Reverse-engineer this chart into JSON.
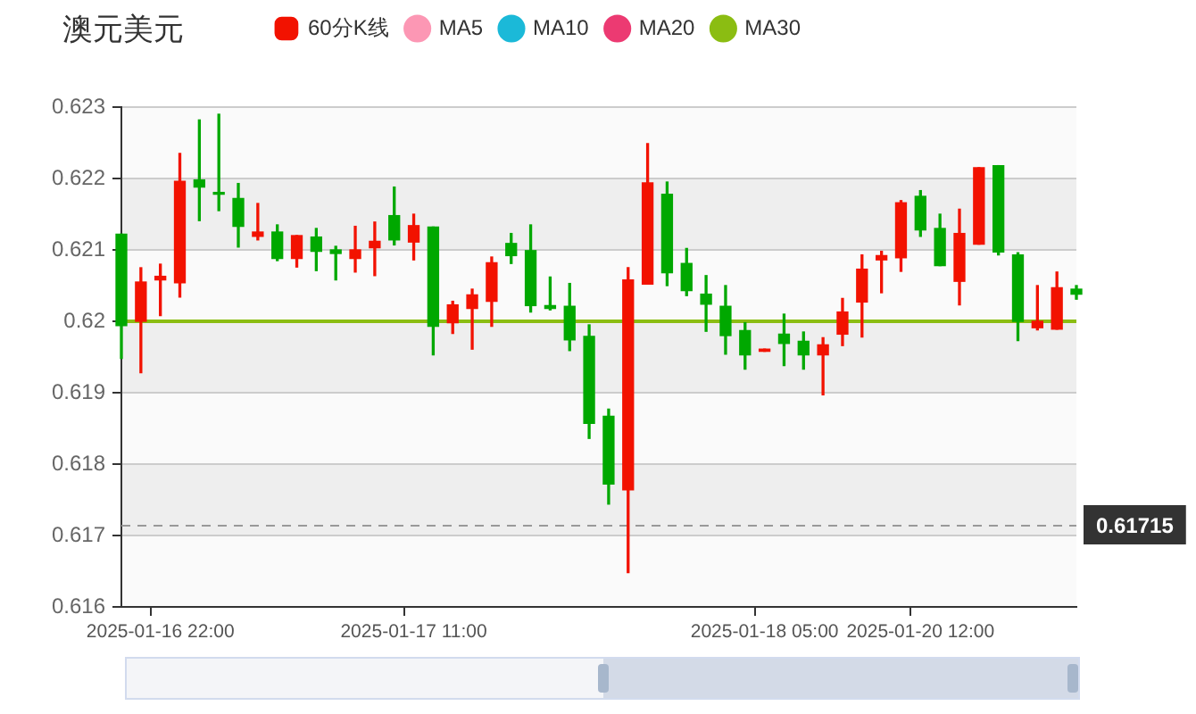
{
  "chart_data": {
    "type": "candlestick",
    "title": "澳元美元",
    "categories": [
      null,
      null,
      "2025-01-16 22:00",
      null,
      null,
      null,
      null,
      null,
      null,
      null,
      null,
      null,
      null,
      null,
      null,
      "2025-01-17 11:00",
      null,
      null,
      null,
      null,
      null,
      null,
      null,
      null,
      null,
      null,
      null,
      null,
      null,
      null,
      null,
      null,
      null,
      "2025-01-18 05:00",
      null,
      null,
      null,
      null,
      null,
      null,
      null,
      "2025-01-20 12:00",
      null,
      null,
      null,
      null,
      null,
      null,
      null,
      null
    ],
    "series": [
      {
        "name": "60分K线",
        "color": "#f21200",
        "ohlc": [
          [
            0.62122,
            0.62122,
            0.61948,
            0.61994
          ],
          [
            0.62,
            0.62075,
            0.61928,
            0.62055
          ],
          [
            0.62058,
            0.6208,
            0.62008,
            0.62063
          ],
          [
            0.62054,
            0.62235,
            0.62034,
            0.62196
          ],
          [
            0.62198,
            0.62282,
            0.62141,
            0.62188
          ],
          [
            0.6218,
            0.6229,
            0.62155,
            0.62178
          ],
          [
            0.62172,
            0.62193,
            0.62104,
            0.62133
          ],
          [
            0.62119,
            0.62165,
            0.62114,
            0.62125
          ],
          [
            0.62125,
            0.62135,
            0.62085,
            0.62088
          ],
          [
            0.62088,
            0.6212,
            0.62076,
            0.6212
          ],
          [
            0.62118,
            0.6213,
            0.62071,
            0.62098
          ],
          [
            0.621,
            0.62105,
            0.62058,
            0.62095
          ],
          [
            0.62088,
            0.62133,
            0.62069,
            0.621
          ],
          [
            0.62103,
            0.62139,
            0.62064,
            0.62112
          ],
          [
            0.62148,
            0.62188,
            0.62107,
            0.62114
          ],
          [
            0.62111,
            0.6215,
            0.62086,
            0.62134
          ],
          [
            0.62132,
            0.62132,
            0.61953,
            0.61993
          ],
          [
            0.61998,
            0.62028,
            0.61983,
            0.62023
          ],
          [
            0.62018,
            0.62045,
            0.61961,
            0.62037
          ],
          [
            0.62028,
            0.6209,
            0.61993,
            0.62082
          ],
          [
            0.62109,
            0.62123,
            0.62081,
            0.62092
          ],
          [
            0.62099,
            0.62135,
            0.62013,
            0.62022
          ],
          [
            0.62022,
            0.62062,
            0.62016,
            0.62018
          ],
          [
            0.62021,
            0.62053,
            0.61959,
            0.61974
          ],
          [
            0.61979,
            0.61995,
            0.61836,
            0.61857
          ],
          [
            0.61867,
            0.61877,
            0.61744,
            0.61772
          ],
          [
            0.61764,
            0.62075,
            0.61648,
            0.62058
          ],
          [
            0.62052,
            0.62249,
            0.62052,
            0.62194
          ],
          [
            0.62178,
            0.62195,
            0.6205,
            0.62068
          ],
          [
            0.62081,
            0.62102,
            0.62036,
            0.62043
          ],
          [
            0.62038,
            0.62064,
            0.61986,
            0.62024
          ],
          [
            0.62021,
            0.6205,
            0.61954,
            0.6198
          ],
          [
            0.61987,
            0.61998,
            0.61933,
            0.61953
          ],
          [
            0.61958,
            0.61961,
            0.61958,
            0.61961
          ],
          [
            0.61982,
            0.6201,
            0.61938,
            0.61969
          ],
          [
            0.61972,
            0.61985,
            0.61933,
            0.61953
          ],
          [
            0.61953,
            0.61977,
            0.61897,
            0.61967
          ],
          [
            0.61982,
            0.62032,
            0.61966,
            0.62013
          ],
          [
            0.62027,
            0.62093,
            0.61978,
            0.62073
          ],
          [
            0.62086,
            0.62098,
            0.6204,
            0.62092
          ],
          [
            0.62089,
            0.62169,
            0.6207,
            0.62166
          ],
          [
            0.62175,
            0.62183,
            0.62119,
            0.62128
          ],
          [
            0.6213,
            0.6215,
            0.62078,
            0.62078
          ],
          [
            0.62056,
            0.62157,
            0.62023,
            0.62123
          ],
          [
            0.62108,
            0.62215,
            0.62108,
            0.62215
          ],
          [
            0.62218,
            0.62218,
            0.62093,
            0.62097
          ],
          [
            0.62093,
            0.62096,
            0.61973,
            0.62
          ],
          [
            0.61991,
            0.6205,
            0.61988,
            0.62
          ],
          [
            0.61989,
            0.62069,
            0.61989,
            0.62047
          ],
          [
            0.62045,
            0.6205,
            0.62031,
            0.62038
          ]
        ],
        "colors": [
          "#00a800",
          "#f21200",
          "#f21200",
          "#f21200",
          "#00a800",
          "#00a800",
          "#00a800",
          "#f21200",
          "#00a800",
          "#f21200",
          "#00a800",
          "#00a800",
          "#f21200",
          "#f21200",
          "#00a800",
          "#f21200",
          "#00a800",
          "#f21200",
          "#f21200",
          "#f21200",
          "#00a800",
          "#00a800",
          "#00a800",
          "#00a800",
          "#00a800",
          "#00a800",
          "#f21200",
          "#f21200",
          "#00a800",
          "#00a800",
          "#00a800",
          "#00a800",
          "#00a800",
          "#f21200",
          "#00a800",
          "#00a800",
          "#f21200",
          "#f21200",
          "#f21200",
          "#f21200",
          "#f21200",
          "#00a800",
          "#00a800",
          "#f21200",
          "#f21200",
          "#00a800",
          "#00a800",
          "#f21200",
          "#f21200",
          "#00a800"
        ]
      },
      {
        "name": "MA5",
        "type": "line",
        "color": "#fc97b4",
        "values": [
          null,
          null,
          null,
          null,
          null,
          null,
          null,
          null,
          null,
          null,
          null,
          null,
          null,
          null,
          null,
          null,
          null,
          null,
          null,
          null,
          null,
          null,
          null,
          null,
          null,
          null,
          null,
          null,
          null,
          null,
          null,
          null,
          null,
          null,
          null,
          null,
          null,
          null,
          null,
          null,
          null,
          null,
          null,
          null,
          null,
          null,
          null,
          null,
          null,
          null
        ]
      },
      {
        "name": "MA10",
        "type": "line",
        "color": "#1bb9d8",
        "values": [
          null,
          null,
          null,
          null,
          null,
          null,
          null,
          null,
          null,
          null,
          null,
          null,
          null,
          null,
          null,
          null,
          null,
          null,
          null,
          null,
          null,
          null,
          null,
          null,
          null,
          null,
          null,
          null,
          null,
          null,
          null,
          null,
          null,
          null,
          null,
          null,
          null,
          null,
          null,
          null,
          null,
          null,
          null,
          null,
          null,
          null,
          null,
          null,
          null,
          null
        ]
      },
      {
        "name": "MA20",
        "type": "line",
        "color": "#ec3a72",
        "values": [
          null,
          null,
          null,
          null,
          null,
          null,
          null,
          null,
          null,
          null,
          null,
          null,
          null,
          null,
          null,
          null,
          null,
          null,
          null,
          null,
          null,
          null,
          null,
          null,
          null,
          null,
          null,
          null,
          null,
          null,
          null,
          null,
          null,
          null,
          null,
          null,
          null,
          null,
          null,
          null,
          null,
          null,
          null,
          null,
          null,
          null,
          null,
          null,
          null,
          null
        ]
      },
      {
        "name": "MA30",
        "type": "line",
        "color": "#8bbd12",
        "values": [
          0.62,
          0.62,
          0.62,
          0.62,
          0.62,
          0.62,
          0.62,
          0.62,
          0.62,
          0.62,
          0.62,
          0.62,
          0.62,
          0.62,
          0.62,
          0.62,
          0.62,
          0.62,
          0.62,
          0.62,
          0.62,
          0.62,
          0.62,
          0.62,
          0.62,
          0.62,
          0.62,
          0.62,
          0.62,
          0.62,
          0.62,
          0.62,
          0.62,
          0.62,
          0.62,
          0.62,
          0.62,
          0.62,
          0.62,
          0.62,
          0.62,
          0.62,
          0.62,
          0.62,
          0.62,
          0.62,
          0.62,
          0.62,
          0.62,
          0.62
        ]
      }
    ],
    "ylim": [
      0.616,
      0.623
    ],
    "yticks": [
      0.616,
      0.617,
      0.618,
      0.619,
      0.62,
      0.621,
      0.622,
      0.623
    ],
    "grid": "y",
    "legend": "top",
    "marker": "none",
    "ref_lines": [
      {
        "axis": "y",
        "value": 0.61715,
        "label": "0.61715",
        "color": "#999999",
        "line_style": "dashed"
      }
    ]
  }
}
